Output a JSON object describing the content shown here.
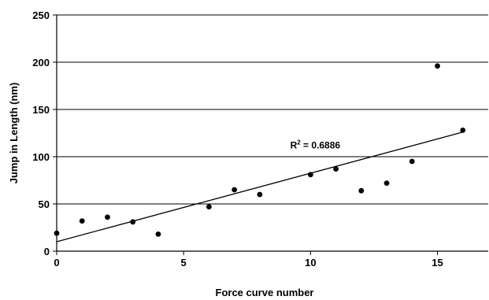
{
  "chart_data": {
    "type": "scatter",
    "title": "",
    "xlabel": "Force curve number",
    "ylabel": "Jump in Length (nm)",
    "xlim": [
      0,
      17
    ],
    "ylim": [
      0,
      250
    ],
    "x_ticks": [
      0,
      5,
      10,
      15
    ],
    "y_ticks": [
      0,
      50,
      100,
      150,
      200,
      250
    ],
    "grid": "horizontal",
    "points": [
      {
        "x": 0,
        "y": 19
      },
      {
        "x": 1,
        "y": 32
      },
      {
        "x": 2,
        "y": 36
      },
      {
        "x": 3,
        "y": 31
      },
      {
        "x": 4,
        "y": 18
      },
      {
        "x": 6,
        "y": 47
      },
      {
        "x": 7,
        "y": 65
      },
      {
        "x": 8,
        "y": 60
      },
      {
        "x": 10,
        "y": 81
      },
      {
        "x": 11,
        "y": 87
      },
      {
        "x": 12,
        "y": 64
      },
      {
        "x": 13,
        "y": 72
      },
      {
        "x": 14,
        "y": 95
      },
      {
        "x": 15,
        "y": 196
      },
      {
        "x": 16,
        "y": 128
      }
    ],
    "trendline": {
      "type": "linear",
      "x_start": 0,
      "y_start": 10,
      "x_end": 16,
      "y_end": 126
    },
    "annotation": {
      "prefix": "R",
      "sup": "2",
      "suffix": " = 0.6886",
      "x": 9.2,
      "y": 112
    }
  }
}
